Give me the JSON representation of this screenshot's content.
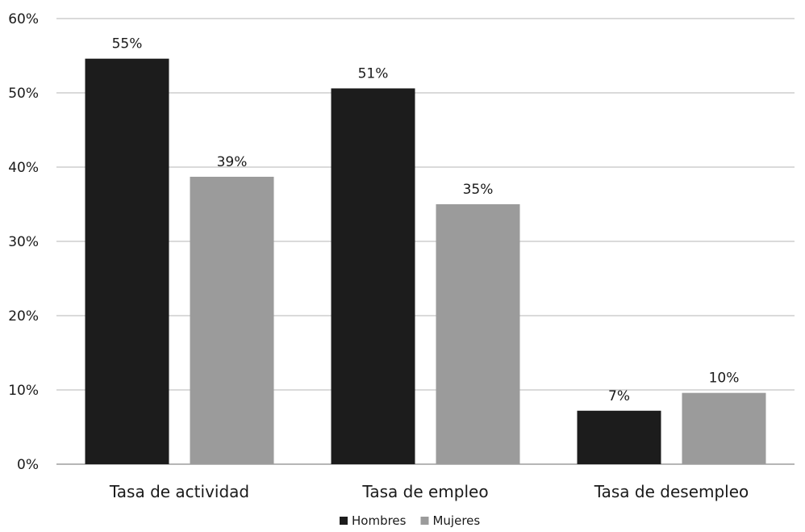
{
  "chart_data": {
    "type": "bar",
    "categories": [
      "Tasa de actividad",
      "Tasa de empleo",
      "Tasa de desempleo"
    ],
    "series": [
      {
        "name": "Hombres",
        "values": [
          54.6,
          50.6,
          7.2
        ],
        "labels": [
          "55%",
          "51%",
          "7%"
        ],
        "color": "#1c1c1c"
      },
      {
        "name": "Mujeres",
        "values": [
          38.7,
          35.0,
          9.6
        ],
        "labels": [
          "39%",
          "35%",
          "10%"
        ],
        "color": "#9b9b9b"
      }
    ],
    "ylim": [
      0,
      60
    ],
    "yticks": [
      0,
      10,
      20,
      30,
      40,
      50,
      60
    ],
    "ytick_labels": [
      "0%",
      "10%",
      "20%",
      "30%",
      "40%",
      "50%",
      "60%"
    ],
    "grid": true,
    "legend_position": "bottom-center",
    "title": "",
    "xlabel": "",
    "ylabel": ""
  }
}
